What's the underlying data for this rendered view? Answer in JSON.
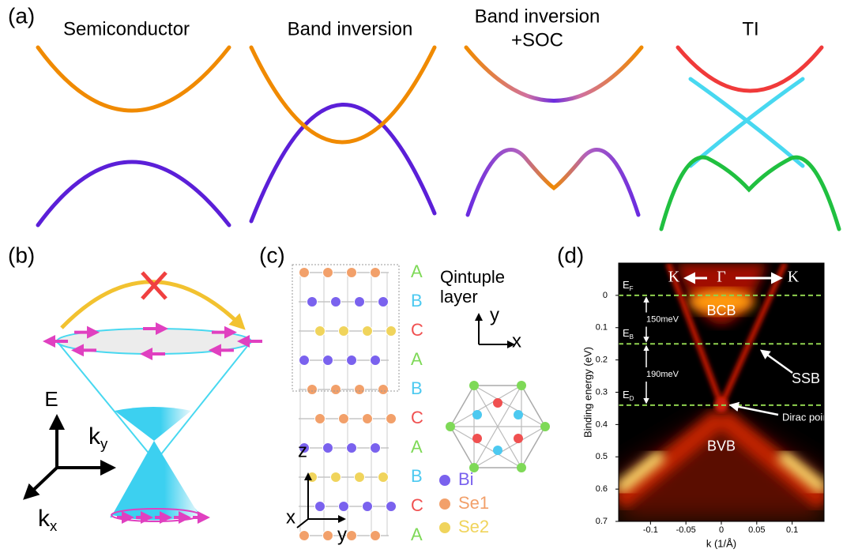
{
  "panel_a": {
    "label": "(a)",
    "titles": [
      [
        "Semiconductor"
      ],
      [
        "Band inversion"
      ],
      [
        "Band inversion",
        "+SOC"
      ],
      [
        "TI"
      ]
    ]
  },
  "panel_b": {
    "label": "(b)",
    "axis_labels": [
      {
        "text": "E"
      },
      {
        "text": "k",
        "sub": "y"
      },
      {
        "text": "k",
        "sub": "x"
      }
    ]
  },
  "panel_c": {
    "label": "(c)",
    "box_label": [
      "Qintuple",
      "layer"
    ],
    "stacking": [
      "A",
      "B",
      "C",
      "A",
      "B",
      "C",
      "A",
      "B",
      "C",
      "A"
    ],
    "stacking_colors": {
      "A": "#7ed957",
      "B": "#4cc9f0",
      "C": "#f05050"
    },
    "hex_axes": [
      "y",
      "x"
    ],
    "crystal_axes": [
      "z",
      "x",
      "y"
    ],
    "legend": [
      {
        "name": "Bi",
        "color": "#7a62ee"
      },
      {
        "name": "Se1",
        "color": "#f2a06a"
      },
      {
        "name": "Se2",
        "color": "#f0d45c"
      }
    ]
  },
  "panel_d": {
    "label": "(d)",
    "top_labels": [
      "K",
      "Γ",
      "K"
    ],
    "ylabel": "Binding energy (eV)",
    "xlabel": "k (1/Å)",
    "xlim": [
      -0.145,
      0.145
    ],
    "xticks": [
      -0.1,
      -0.05,
      0,
      0.05,
      0.1
    ],
    "ylim": [
      -0.1,
      0.7
    ],
    "yticks": [
      0,
      0.1,
      0.2,
      0.3,
      0.4,
      0.5,
      0.6,
      0.7
    ],
    "levels": [
      {
        "name": "E",
        "sub": "F",
        "value": 0
      },
      {
        "name": "E",
        "sub": "B",
        "value": 0.15
      },
      {
        "name": "E",
        "sub": "D",
        "value": 0.34
      }
    ],
    "gaps": [
      "150meV",
      "190meV"
    ],
    "annotations": [
      "BCB",
      "SSB",
      "Dirac point",
      "BVB"
    ]
  }
}
